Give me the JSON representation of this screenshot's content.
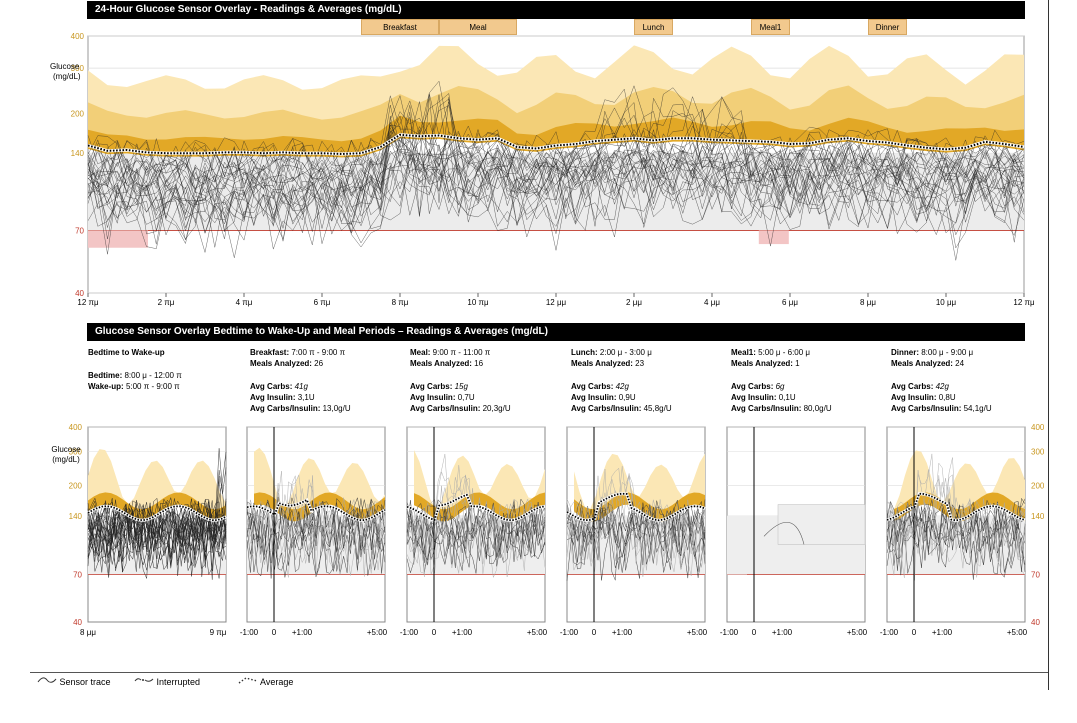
{
  "colors": {
    "low": "#c0392b",
    "band_light": "#fbe7b5",
    "band_mid": "#f2cf78",
    "band_dark": "#e2a826",
    "target": "#dddddd",
    "trace": "#222222",
    "meal_tab": "#f2c98e",
    "axis_gold": "#c8961e"
  },
  "top_chart": {
    "title": "24-Hour Glucose Sensor Overlay - Readings & Averages (mg/dL)",
    "ylabel_line1": "Glucose",
    "ylabel_line2": "(mg/dL)",
    "meal_tabs": [
      {
        "label": "Breakfast",
        "start_h": 7.0,
        "end_h": 9.0
      },
      {
        "label": "Meal",
        "start_h": 9.0,
        "end_h": 11.0
      },
      {
        "label": "Lunch",
        "start_h": 14.0,
        "end_h": 15.0
      },
      {
        "label": "Meal1",
        "start_h": 17.0,
        "end_h": 18.0
      },
      {
        "label": "Dinner",
        "start_h": 20.0,
        "end_h": 21.0
      }
    ],
    "x_ticks": [
      "12 πμ",
      "2 πμ",
      "4 πμ",
      "6 πμ",
      "8 πμ",
      "10 πμ",
      "12 μμ",
      "2 μμ",
      "4 μμ",
      "6 μμ",
      "8 μμ",
      "10 μμ",
      "12 πμ"
    ],
    "y_ticks": [
      "400",
      "300",
      "200",
      "140",
      "70",
      "40"
    ]
  },
  "chart_data": {
    "type": "line",
    "title": "24-Hour Glucose Sensor Overlay - Readings & Averages (mg/dL)",
    "xlabel": "",
    "ylabel": "Glucose (mg/dL)",
    "ylim": [
      40,
      400
    ],
    "y_scale": "log",
    "target_range": [
      70,
      140
    ],
    "x_hours": [
      0,
      0.5,
      1,
      1.5,
      2,
      2.5,
      3,
      3.5,
      4,
      4.5,
      5,
      5.5,
      6,
      6.5,
      7,
      7.5,
      8,
      8.5,
      9,
      9.5,
      10,
      10.5,
      11,
      11.5,
      12,
      12.5,
      13,
      13.5,
      14,
      14.5,
      15,
      15.5,
      16,
      16.5,
      17,
      17.5,
      18,
      18.5,
      19,
      19.5,
      20,
      20.5,
      21,
      21.5,
      22,
      22.5,
      23,
      23.5,
      24
    ],
    "series": [
      {
        "name": "Average",
        "values": [
          150,
          143,
          144,
          141,
          140,
          140,
          140,
          141,
          141,
          140,
          141,
          140,
          140,
          139,
          140,
          148,
          165,
          163,
          164,
          160,
          158,
          160,
          148,
          146,
          150,
          152,
          156,
          158,
          160,
          157,
          160,
          160,
          158,
          157,
          156,
          155,
          152,
          153,
          158,
          160,
          156,
          154,
          150,
          147,
          145,
          147,
          155,
          152,
          148
        ]
      }
    ]
  },
  "bottom": {
    "title": "Glucose Sensor Overlay Bedtime to Wake-Up and Meal Periods – Readings & Averages (mg/dL)",
    "bedtime": {
      "title": "Bedtime to Wake-up",
      "bed_label": "Bedtime:",
      "bed_value": "8:00 μ - 12:00 π",
      "wake_label": "Wake-up:",
      "wake_value": "5:00 π - 9:00 π",
      "x_start": "8 μμ",
      "x_end": "9 πμ"
    },
    "meals": [
      {
        "name": "Breakfast:",
        "time": "7:00 π - 9:00 π",
        "analyzed_label": "Meals Analyzed:",
        "analyzed": "26",
        "carbs_label": "Avg Carbs:",
        "carbs": "41g",
        "insulin_label": "Avg Insulin:",
        "insulin": "3,1U",
        "ratio_label": "Avg Carbs/Insulin:",
        "ratio": "13,0g/U"
      },
      {
        "name": "Meal:",
        "time": "9:00 π - 11:00 π",
        "analyzed_label": "Meals Analyzed:",
        "analyzed": "16",
        "carbs_label": "Avg Carbs:",
        "carbs": "15g",
        "insulin_label": "Avg Insulin:",
        "insulin": "0,7U",
        "ratio_label": "Avg Carbs/Insulin:",
        "ratio": "20,3g/U"
      },
      {
        "name": "Lunch:",
        "time": "2:00 μ - 3:00 μ",
        "analyzed_label": "Meals Analyzed:",
        "analyzed": "23",
        "carbs_label": "Avg Carbs:",
        "carbs": "42g",
        "insulin_label": "Avg Insulin:",
        "insulin": "0,9U",
        "ratio_label": "Avg Carbs/Insulin:",
        "ratio": "45,8g/U"
      },
      {
        "name": "Meal1:",
        "time": "5:00 μ - 6:00 μ",
        "analyzed_label": "Meals Analyzed:",
        "analyzed": "1",
        "carbs_label": "Avg Carbs:",
        "carbs": "6g",
        "insulin_label": "Avg Insulin:",
        "insulin": "0,1U",
        "ratio_label": "Avg Carbs/Insulin:",
        "ratio": "80,0g/U"
      },
      {
        "name": "Dinner:",
        "time": "8:00 μ - 9:00 μ",
        "analyzed_label": "Meals Analyzed:",
        "analyzed": "24",
        "carbs_label": "Avg Carbs:",
        "carbs": "42g",
        "insulin_label": "Avg Insulin:",
        "insulin": "0,8U",
        "ratio_label": "Avg Carbs/Insulin:",
        "ratio": "54,1g/U"
      }
    ],
    "meal_x_ticks": [
      "-1:00",
      "0",
      "+1:00",
      "+5:00"
    ]
  },
  "legend": {
    "sensor": "Sensor trace",
    "interrupted": "Interrupted",
    "average": "Average"
  }
}
